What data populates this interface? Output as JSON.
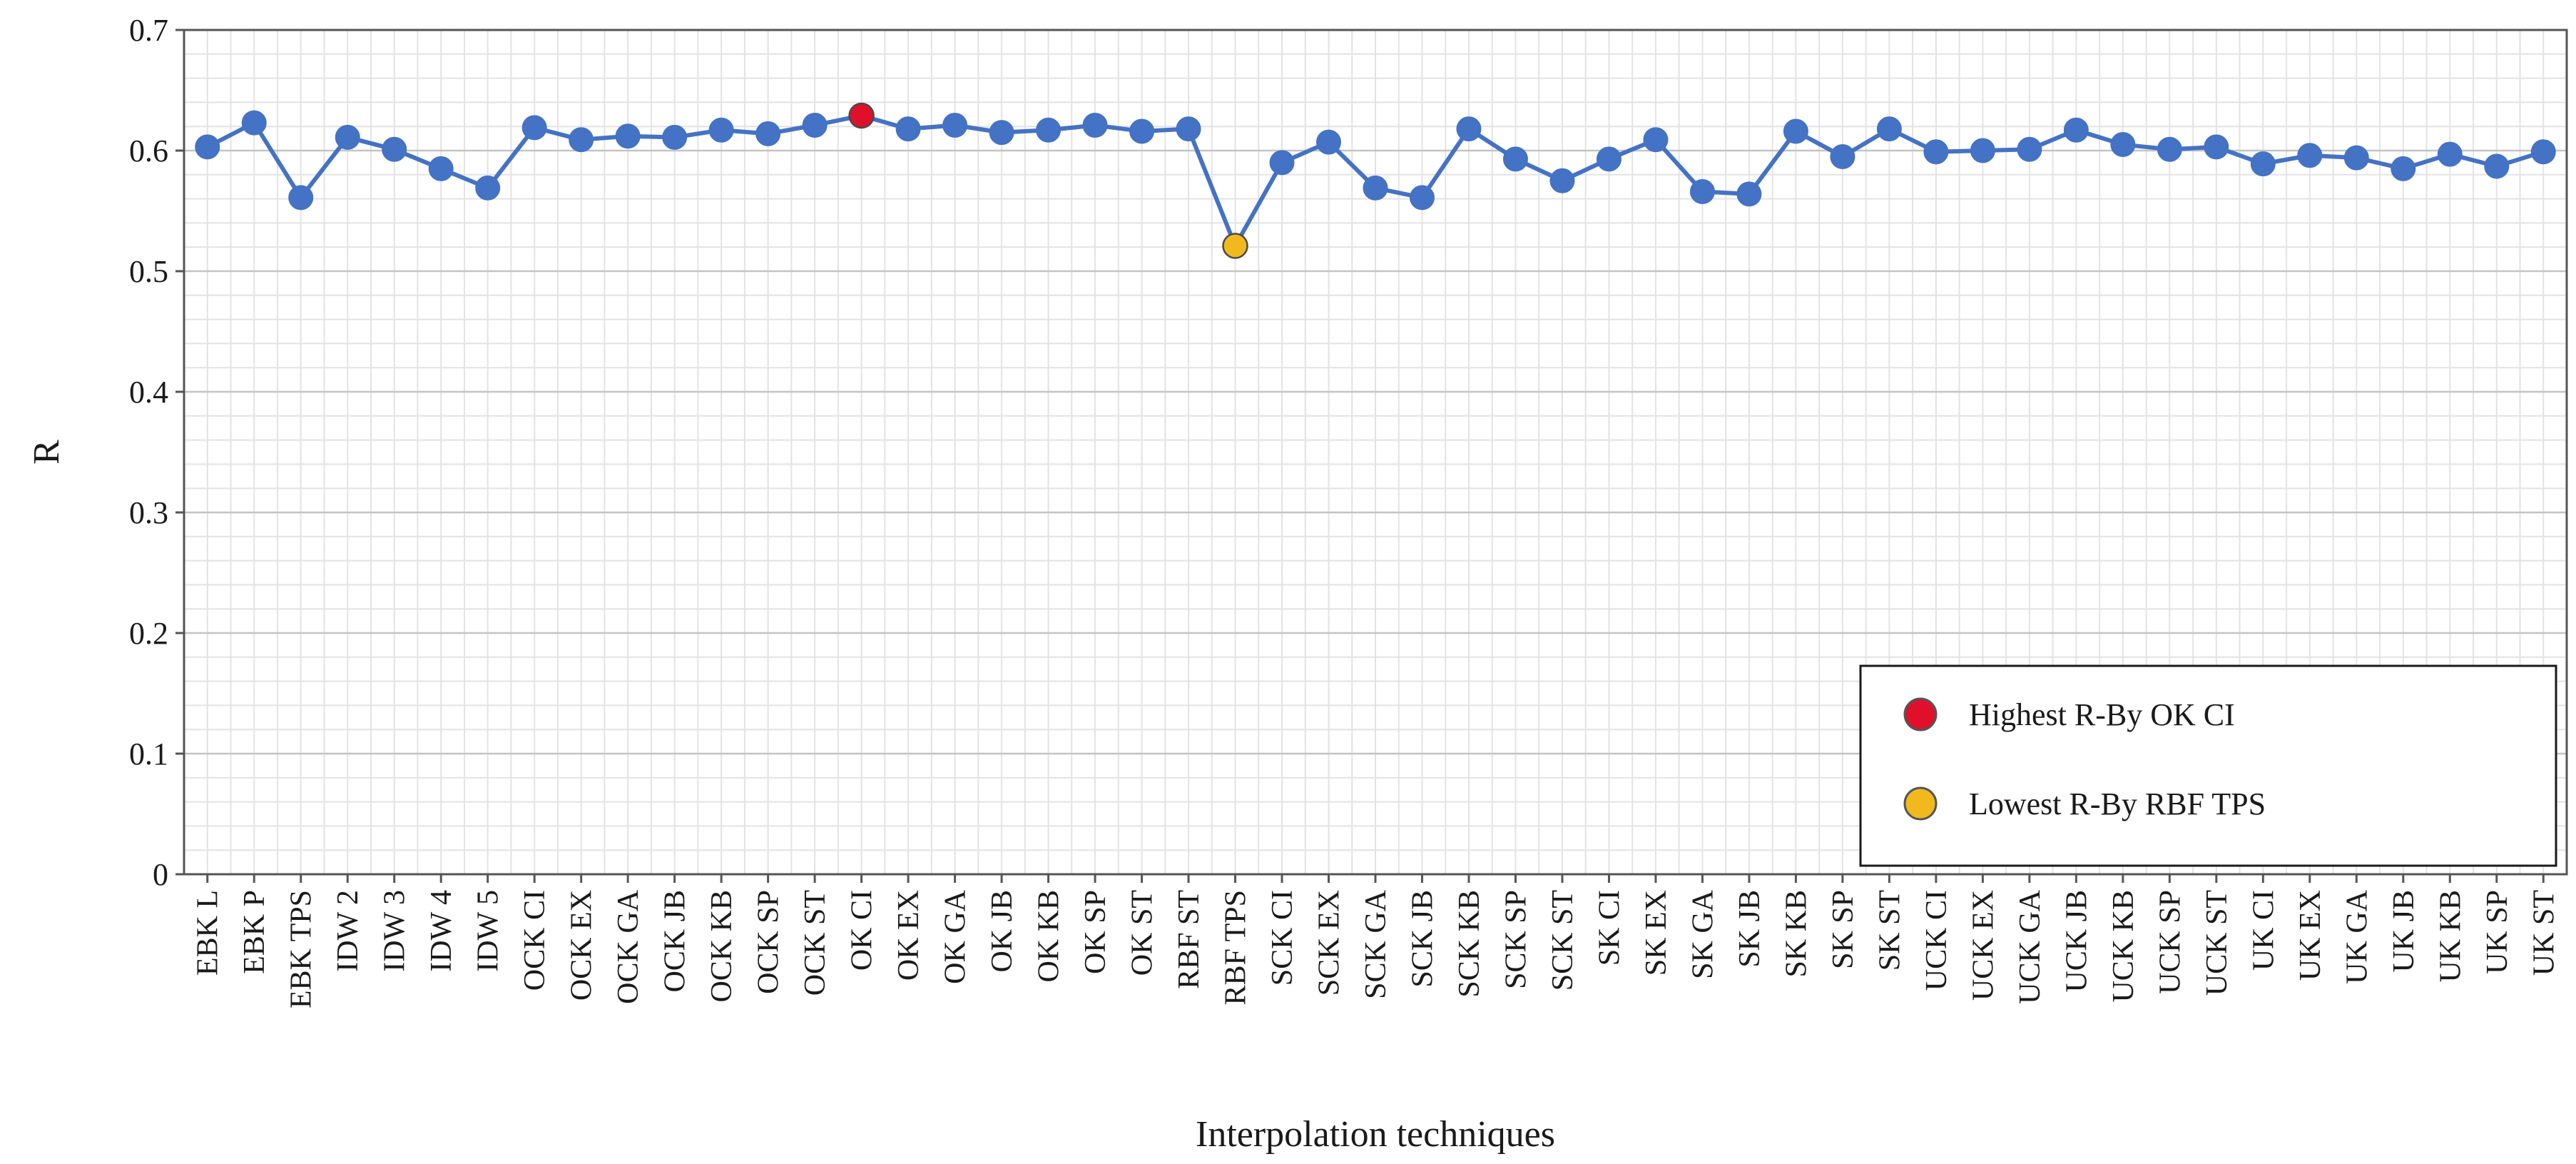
{
  "chart_data": {
    "type": "line",
    "xlabel": "Interpolation techniques",
    "ylabel": "R",
    "ylim": [
      0,
      0.7
    ],
    "yticks": [
      "0",
      "0.1",
      "0.2",
      "0.3",
      "0.4",
      "0.5",
      "0.6",
      "0.7"
    ],
    "grid": true,
    "legend_position": "bottom-right",
    "categories": [
      "EBK L",
      "EBK P",
      "EBK TPS",
      "IDW 2",
      "IDW 3",
      "IDW 4",
      "IDW 5",
      "OCK CI",
      "OCK EX",
      "OCK GA",
      "OCK JB",
      "OCK KB",
      "OCK SP",
      "OCK ST",
      "OK CI",
      "OK EX",
      "OK GA",
      "OK JB",
      "OK KB",
      "OK SP",
      "OK ST",
      "RBF ST",
      "RBF TPS",
      "SCK CI",
      "SCK EX",
      "SCK GA",
      "SCK JB",
      "SCK KB",
      "SCK SP",
      "SCK ST",
      "SK CI",
      "SK EX",
      "SK GA",
      "SK JB",
      "SK KB",
      "SK SP",
      "SK ST",
      "UCK CI",
      "UCK EX",
      "UCK GA",
      "UCK JB",
      "UCK KB",
      "UCK SP",
      "UCK ST",
      "UK CI",
      "UK EX",
      "UK GA",
      "UK JB",
      "UK KB",
      "UK SP",
      "UK ST"
    ],
    "series": [
      {
        "values": [
          0.603,
          0.623,
          0.561,
          0.611,
          0.601,
          0.585,
          0.569,
          0.619,
          0.609,
          0.612,
          0.611,
          0.617,
          0.614,
          0.621,
          0.629,
          0.618,
          0.621,
          0.615,
          0.617,
          0.621,
          0.616,
          0.618,
          0.521,
          0.59,
          0.607,
          0.569,
          0.561,
          0.618,
          0.593,
          0.575,
          0.593,
          0.609,
          0.566,
          0.564,
          0.616,
          0.595,
          0.618,
          0.599,
          0.6,
          0.601,
          0.617,
          0.605,
          0.601,
          0.603,
          0.589,
          0.596,
          0.594,
          0.585,
          0.597,
          0.587,
          0.599
        ],
        "color": "#4472C4"
      }
    ],
    "highlights": [
      {
        "category": "OK CI",
        "value": 0.629,
        "color": "#E0102A",
        "label": "Highest R-By OK CI"
      },
      {
        "category": "RBF TPS",
        "value": 0.521,
        "color": "#F2B91E",
        "label": "Lowest R-By RBF TPS"
      }
    ]
  }
}
